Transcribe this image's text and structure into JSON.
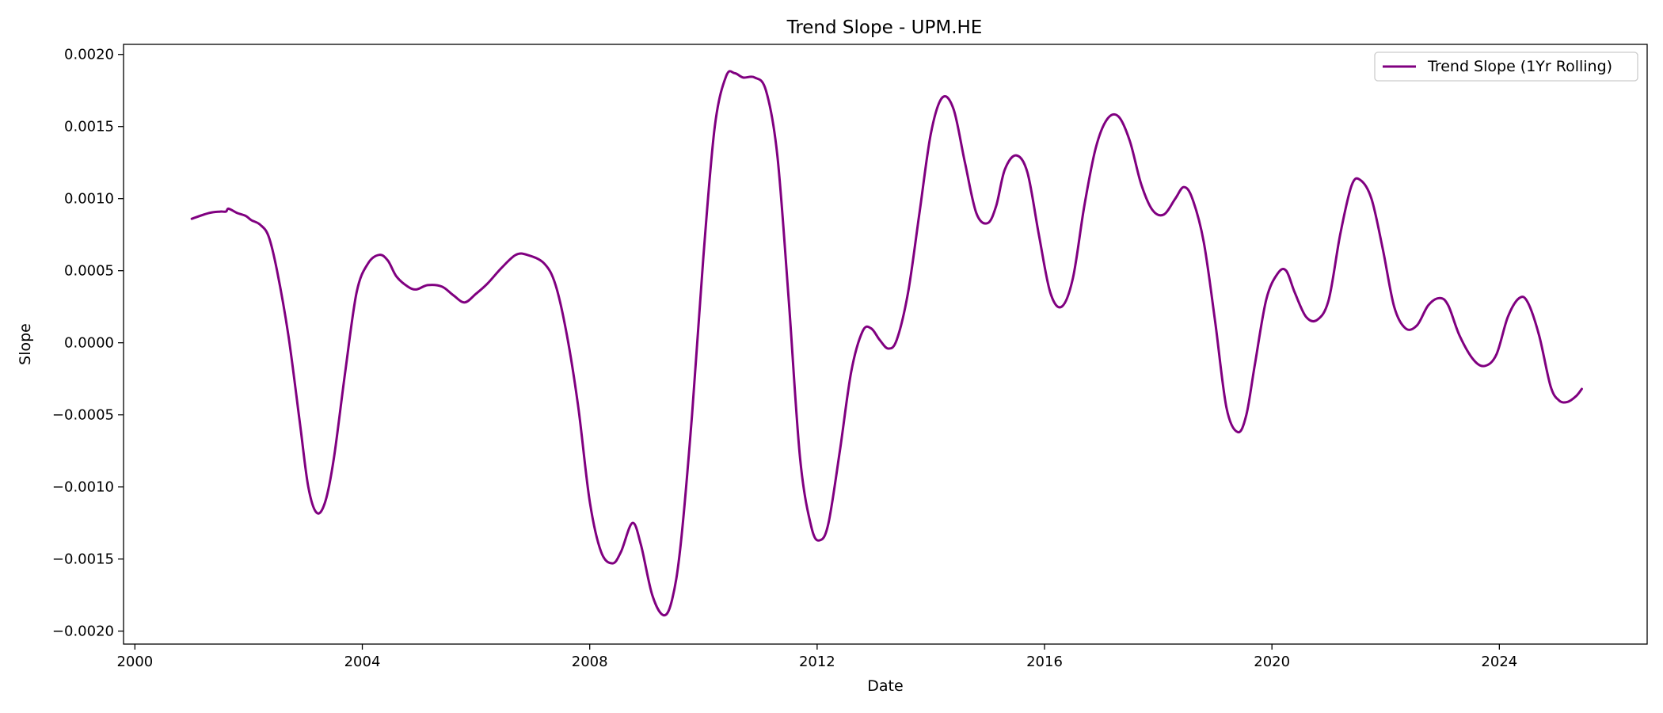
{
  "chart_data": {
    "type": "line",
    "title": "Trend Slope - UPM.HE",
    "xlabel": "Date",
    "ylabel": "Slope",
    "xlim": [
      1999.8,
      2026.6
    ],
    "ylim": [
      -0.00209,
      0.00207
    ],
    "x_ticks": [
      2000,
      2004,
      2008,
      2012,
      2016,
      2020,
      2024
    ],
    "x_tick_labels": [
      "2000",
      "2004",
      "2008",
      "2012",
      "2016",
      "2020",
      "2024"
    ],
    "y_ticks": [
      0.002,
      0.0015,
      0.001,
      0.0005,
      0.0,
      -0.0005,
      -0.001,
      -0.0015,
      -0.002
    ],
    "y_tick_labels": [
      "0.0020",
      "0.0015",
      "0.0010",
      "0.0005",
      "0.0000",
      "−0.0005",
      "−0.0010",
      "−0.0015",
      "−0.0020"
    ],
    "grid": false,
    "legend_position": "top-right",
    "series": [
      {
        "name": "Trend Slope (1Yr Rolling)",
        "color": "#800080",
        "points": [
          [
            2001.0,
            0.00086
          ],
          [
            2001.3,
            0.0009
          ],
          [
            2001.5,
            0.00091
          ],
          [
            2001.6,
            0.00091
          ],
          [
            2001.65,
            0.00093
          ],
          [
            2001.8,
            0.0009
          ],
          [
            2001.95,
            0.00088
          ],
          [
            2002.05,
            0.00085
          ],
          [
            2002.2,
            0.00082
          ],
          [
            2002.35,
            0.00074
          ],
          [
            2002.5,
            0.0005
          ],
          [
            2002.7,
            5e-05
          ],
          [
            2002.9,
            -0.00055
          ],
          [
            2003.05,
            -0.001
          ],
          [
            2003.2,
            -0.00118
          ],
          [
            2003.35,
            -0.0011
          ],
          [
            2003.5,
            -0.0008
          ],
          [
            2003.7,
            -0.0002
          ],
          [
            2003.9,
            0.00035
          ],
          [
            2004.1,
            0.00055
          ],
          [
            2004.3,
            0.00061
          ],
          [
            2004.45,
            0.00057
          ],
          [
            2004.6,
            0.00046
          ],
          [
            2004.8,
            0.00039
          ],
          [
            2004.95,
            0.00037
          ],
          [
            2005.15,
            0.0004
          ],
          [
            2005.4,
            0.00039
          ],
          [
            2005.6,
            0.00033
          ],
          [
            2005.8,
            0.00028
          ],
          [
            2006.0,
            0.00034
          ],
          [
            2006.2,
            0.00041
          ],
          [
            2006.45,
            0.00052
          ],
          [
            2006.7,
            0.00061
          ],
          [
            2006.9,
            0.00061
          ],
          [
            2007.2,
            0.00055
          ],
          [
            2007.4,
            0.0004
          ],
          [
            2007.6,
            5e-05
          ],
          [
            2007.8,
            -0.00045
          ],
          [
            2008.0,
            -0.0011
          ],
          [
            2008.2,
            -0.00145
          ],
          [
            2008.4,
            -0.00153
          ],
          [
            2008.55,
            -0.00145
          ],
          [
            2008.75,
            -0.00125
          ],
          [
            2008.9,
            -0.0014
          ],
          [
            2009.1,
            -0.00175
          ],
          [
            2009.3,
            -0.00189
          ],
          [
            2009.45,
            -0.00178
          ],
          [
            2009.6,
            -0.0014
          ],
          [
            2009.8,
            -0.0005
          ],
          [
            2010.0,
            0.0006
          ],
          [
            2010.2,
            0.0015
          ],
          [
            2010.4,
            0.00185
          ],
          [
            2010.55,
            0.00187
          ],
          [
            2010.7,
            0.00184
          ],
          [
            2010.9,
            0.00184
          ],
          [
            2011.1,
            0.00175
          ],
          [
            2011.3,
            0.0013
          ],
          [
            2011.5,
            0.0003
          ],
          [
            2011.7,
            -0.0008
          ],
          [
            2011.9,
            -0.00128
          ],
          [
            2012.05,
            -0.00137
          ],
          [
            2012.2,
            -0.00125
          ],
          [
            2012.4,
            -0.00075
          ],
          [
            2012.6,
            -0.0002
          ],
          [
            2012.8,
            8e-05
          ],
          [
            2012.95,
            0.0001
          ],
          [
            2013.1,
            2e-05
          ],
          [
            2013.25,
            -4e-05
          ],
          [
            2013.4,
            2e-05
          ],
          [
            2013.6,
            0.00035
          ],
          [
            2013.8,
            0.0009
          ],
          [
            2014.0,
            0.00145
          ],
          [
            2014.2,
            0.0017
          ],
          [
            2014.4,
            0.00162
          ],
          [
            2014.6,
            0.00125
          ],
          [
            2014.8,
            0.0009
          ],
          [
            2015.0,
            0.00083
          ],
          [
            2015.15,
            0.00095
          ],
          [
            2015.3,
            0.0012
          ],
          [
            2015.5,
            0.0013
          ],
          [
            2015.7,
            0.00118
          ],
          [
            2015.9,
            0.00075
          ],
          [
            2016.1,
            0.00035
          ],
          [
            2016.3,
            0.00025
          ],
          [
            2016.5,
            0.00045
          ],
          [
            2016.7,
            0.00095
          ],
          [
            2016.9,
            0.00135
          ],
          [
            2017.1,
            0.00155
          ],
          [
            2017.3,
            0.00157
          ],
          [
            2017.5,
            0.0014
          ],
          [
            2017.7,
            0.0011
          ],
          [
            2017.9,
            0.00092
          ],
          [
            2018.1,
            0.00089
          ],
          [
            2018.3,
            0.001
          ],
          [
            2018.45,
            0.00108
          ],
          [
            2018.6,
            0.001
          ],
          [
            2018.8,
            0.0007
          ],
          [
            2019.0,
            0.00015
          ],
          [
            2019.2,
            -0.00045
          ],
          [
            2019.4,
            -0.00062
          ],
          [
            2019.55,
            -0.0005
          ],
          [
            2019.7,
            -0.00015
          ],
          [
            2019.9,
            0.0003
          ],
          [
            2020.1,
            0.00048
          ],
          [
            2020.25,
            0.0005
          ],
          [
            2020.4,
            0.00035
          ],
          [
            2020.6,
            0.00018
          ],
          [
            2020.8,
            0.00016
          ],
          [
            2021.0,
            0.0003
          ],
          [
            2021.2,
            0.00075
          ],
          [
            2021.4,
            0.00109
          ],
          [
            2021.55,
            0.00113
          ],
          [
            2021.75,
            0.001
          ],
          [
            2021.95,
            0.00065
          ],
          [
            2022.15,
            0.00025
          ],
          [
            2022.35,
            0.0001
          ],
          [
            2022.55,
            0.00012
          ],
          [
            2022.75,
            0.00026
          ],
          [
            2022.95,
            0.00031
          ],
          [
            2023.1,
            0.00026
          ],
          [
            2023.3,
            5e-05
          ],
          [
            2023.55,
            -0.00012
          ],
          [
            2023.75,
            -0.00016
          ],
          [
            2023.95,
            -8e-05
          ],
          [
            2024.15,
            0.00018
          ],
          [
            2024.35,
            0.00031
          ],
          [
            2024.5,
            0.00028
          ],
          [
            2024.7,
            5e-05
          ],
          [
            2024.9,
            -0.0003
          ],
          [
            2025.05,
            -0.0004
          ],
          [
            2025.2,
            -0.00041
          ],
          [
            2025.35,
            -0.00037
          ],
          [
            2025.45,
            -0.00032
          ]
        ]
      }
    ]
  }
}
